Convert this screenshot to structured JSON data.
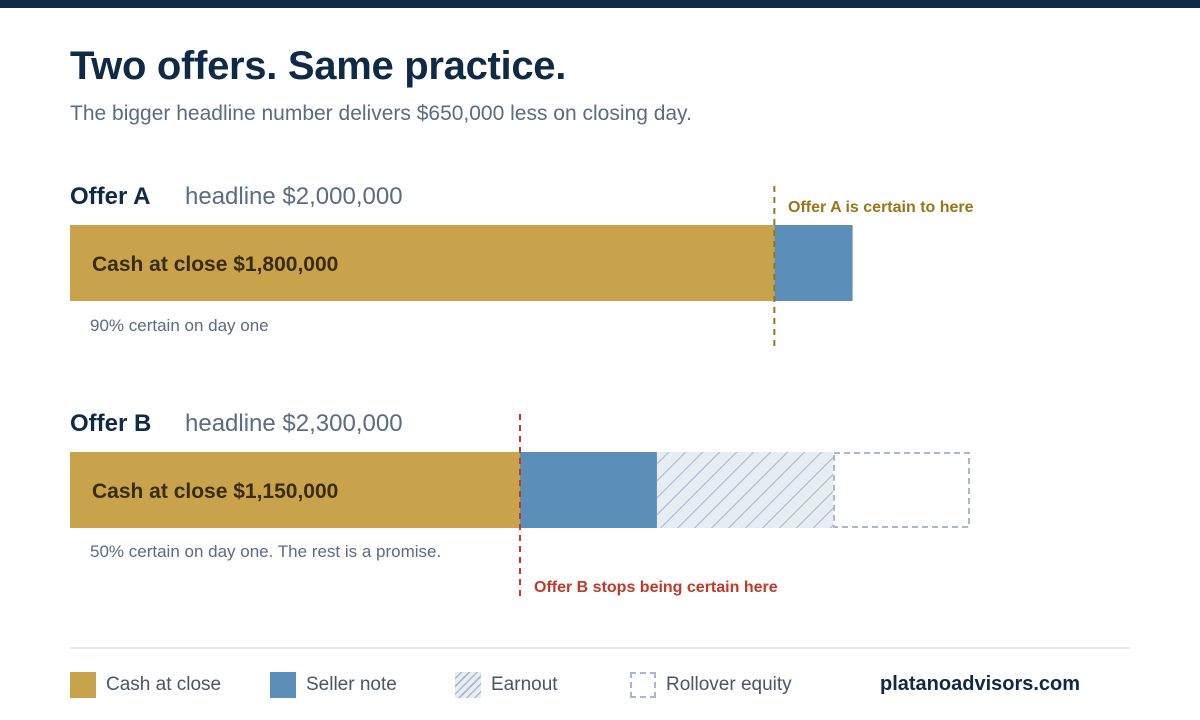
{
  "title": "Two offers. Same practice.",
  "subtitle": "The bigger headline number delivers $650,000 less on closing day.",
  "colors": {
    "cash_at_close": "#c9a24c",
    "seller_note": "#5b8fb9",
    "earnout": "#e8edf3",
    "earnout_stripe": "#a8b8cc",
    "rollover_border": "#a8b8cc",
    "marker_a": "#9a7418",
    "marker_b": "#c0392b",
    "navy": "#0f2a47"
  },
  "offers": [
    {
      "name": "Offer A",
      "headline": "headline $2,000,000",
      "bar_label": "Cash at close $1,800,000",
      "note": "90% certain on day one",
      "marker_label": "Offer A is certain to here"
    },
    {
      "name": "Offer B",
      "headline": "headline $2,300,000",
      "bar_label": "Cash at close $1,150,000",
      "note": "50% certain on day one. The rest is a promise.",
      "marker_label": "Offer B stops being certain here"
    }
  ],
  "chart_data": {
    "type": "bar",
    "orientation": "horizontal",
    "stacked": true,
    "categories": [
      "Offer A",
      "Offer B"
    ],
    "series": [
      {
        "name": "Cash at close",
        "values": [
          1800000,
          1150000
        ]
      },
      {
        "name": "Seller note",
        "values": [
          200000,
          350000
        ]
      },
      {
        "name": "Earnout",
        "values": [
          0,
          450000
        ]
      },
      {
        "name": "Rollover equity",
        "values": [
          0,
          350000
        ]
      }
    ],
    "xlim": [
      0,
      2300000
    ],
    "markers": [
      {
        "offer": "Offer A",
        "value": 1800000,
        "label": "Offer A is certain to here"
      },
      {
        "offer": "Offer B",
        "value": 1150000,
        "label": "Offer B stops being certain here"
      }
    ],
    "grid": false,
    "legend_position": "bottom"
  },
  "legend": [
    {
      "label": "Cash at close",
      "style": "cash"
    },
    {
      "label": "Seller note",
      "style": "note"
    },
    {
      "label": "Earnout",
      "style": "earnout"
    },
    {
      "label": "Rollover equity",
      "style": "rollover"
    }
  ],
  "brand": "platanoadvisors.com"
}
